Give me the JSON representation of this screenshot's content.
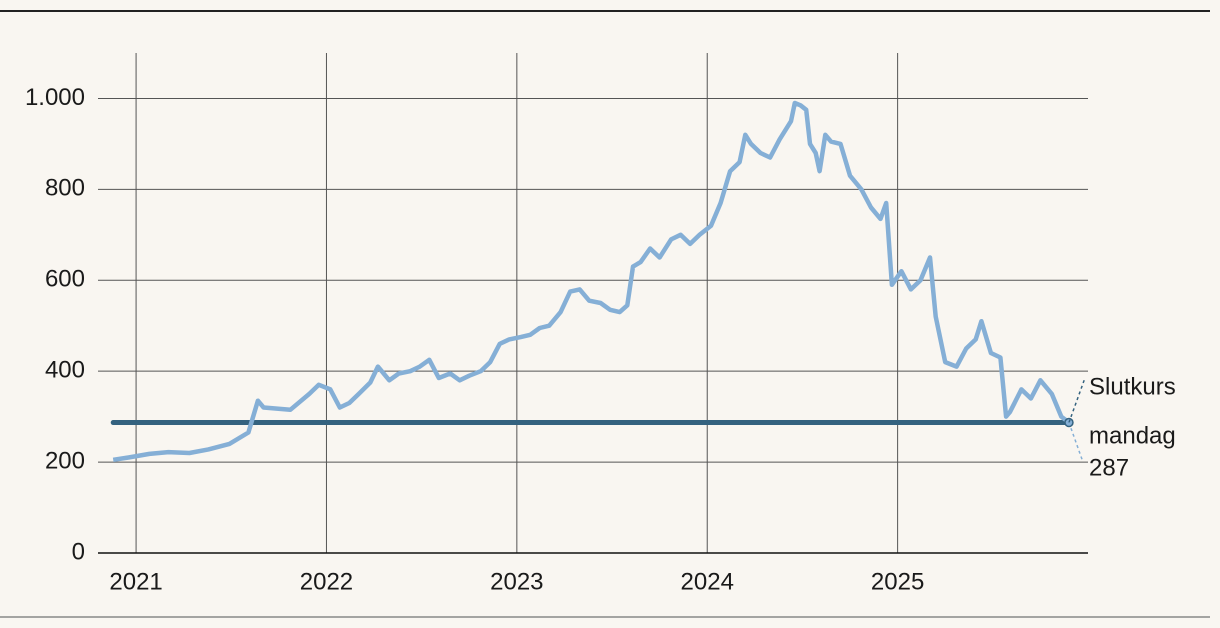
{
  "chart_data": {
    "type": "line",
    "x": [
      2020.88,
      2020.96,
      2021.07,
      2021.17,
      2021.28,
      2021.38,
      2021.49,
      2021.59,
      2021.64,
      2021.67,
      2021.81,
      2021.91,
      2021.96,
      2022.02,
      2022.07,
      2022.12,
      2022.17,
      2022.23,
      2022.27,
      2022.33,
      2022.38,
      2022.44,
      2022.49,
      2022.54,
      2022.59,
      2022.65,
      2022.7,
      2022.75,
      2022.81,
      2022.86,
      2022.91,
      2022.96,
      2023.02,
      2023.07,
      2023.12,
      2023.17,
      2023.23,
      2023.28,
      2023.33,
      2023.38,
      2023.44,
      2023.49,
      2023.54,
      2023.58,
      2023.61,
      2023.65,
      2023.7,
      2023.75,
      2023.81,
      2023.86,
      2023.91,
      2023.96,
      2024.02,
      2024.07,
      2024.12,
      2024.17,
      2024.2,
      2024.23,
      2024.28,
      2024.33,
      2024.38,
      2024.44,
      2024.46,
      2024.49,
      2024.52,
      2024.54,
      2024.57,
      2024.59,
      2024.62,
      2024.65,
      2024.7,
      2024.75,
      2024.81,
      2024.86,
      2024.91,
      2024.94,
      2024.96,
      2024.97,
      2025.02,
      2025.07,
      2025.12,
      2025.17,
      2025.2,
      2025.25,
      2025.31,
      2025.36,
      2025.41,
      2025.44,
      2025.49,
      2025.54,
      2025.57,
      2025.59,
      2025.65,
      2025.7,
      2025.75,
      2025.81,
      2025.86,
      2025.9
    ],
    "series": [
      {
        "color": "#85afd6",
        "values": [
          205,
          210,
          218,
          222,
          220,
          228,
          240,
          265,
          335,
          320,
          315,
          350,
          370,
          360,
          320,
          330,
          350,
          375,
          410,
          380,
          395,
          400,
          410,
          425,
          385,
          395,
          380,
          390,
          400,
          420,
          460,
          470,
          475,
          480,
          495,
          500,
          530,
          575,
          580,
          555,
          550,
          535,
          530,
          545,
          630,
          640,
          670,
          650,
          690,
          700,
          680,
          700,
          720,
          770,
          840,
          860,
          920,
          900,
          880,
          870,
          910,
          950,
          990,
          985,
          975,
          900,
          880,
          840,
          920,
          905,
          900,
          830,
          800,
          760,
          735,
          770,
          650,
          590,
          620,
          580,
          600,
          650,
          520,
          420,
          410,
          450,
          470,
          510,
          440,
          430,
          300,
          310,
          360,
          340,
          380,
          350,
          300,
          287
        ]
      }
    ],
    "reference_line": {
      "value": 287,
      "color": "#34627f",
      "label_lines": [
        "Slutkurs",
        "mandag"
      ]
    },
    "xlim": [
      2020.8,
      2026.0
    ],
    "xticks": [
      2021,
      2022,
      2023,
      2024,
      2025
    ],
    "ylim": [
      0,
      1100
    ],
    "yticks": [
      0,
      200,
      400,
      600,
      800,
      {
        "value": 1000,
        "label": "1.000"
      }
    ],
    "grid": true
  }
}
